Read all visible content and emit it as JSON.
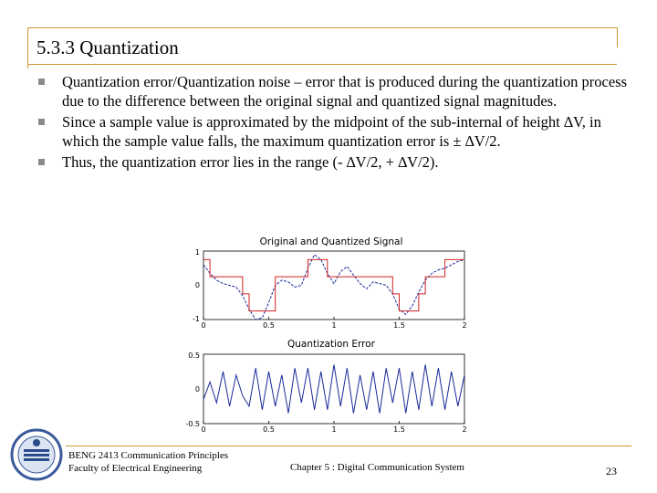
{
  "slide": {
    "title": "5.3.3 Quantization",
    "bullets": [
      "Quantization error/Quantization noise – error that is produced during the quantization process due to the difference between the original signal and quantized signal magnitudes.",
      "Since a sample value is approximated by the midpoint of the sub-internal of height ∆V, in which the sample value falls, the maximum quantization error is ± ∆V/2.",
      "Thus, the quantization error lies in the range (- ∆V/2, + ∆V/2)."
    ],
    "bullet_marker": "square-bullet-icon"
  },
  "figure": {
    "top_title": "Original and Quantized Signal",
    "top_yticks": [
      "1",
      "0",
      "-1"
    ],
    "bottom_title": "Quantization Error",
    "bottom_yticks": [
      "0.5",
      "0",
      "-0.5"
    ],
    "xticks": [
      "0",
      "0.5",
      "1",
      "1.5",
      "2"
    ],
    "original_color": "#1a2a9a",
    "quantized_color": "#d42020",
    "error_color": "#1a2a9a"
  },
  "chart_data": [
    {
      "type": "line",
      "title": "Original and Quantized Signal",
      "xlim": [
        0,
        2
      ],
      "ylim": [
        -1,
        1
      ],
      "xticks": [
        0,
        0.5,
        1,
        1.5,
        2
      ],
      "yticks": [
        -1,
        0,
        1
      ],
      "series": [
        {
          "x": [
            0,
            0.05,
            0.1,
            0.15,
            0.2,
            0.25,
            0.3,
            0.35,
            0.4,
            0.45,
            0.5,
            0.55,
            0.6,
            0.65,
            0.7,
            0.75,
            0.8,
            0.85,
            0.9,
            0.95,
            1,
            1.05,
            1.1,
            1.15,
            1.2,
            1.25,
            1.3,
            1.35,
            1.4,
            1.45,
            1.5,
            1.55,
            1.6,
            1.65,
            1.7,
            1.75,
            1.8,
            1.85,
            1.9,
            1.95,
            2
          ],
          "values": [
            0.6,
            0.35,
            0.15,
            0.05,
            0.0,
            -0.05,
            -0.3,
            -0.7,
            -1.0,
            -0.95,
            -0.5,
            0.0,
            0.15,
            0.1,
            -0.05,
            0.0,
            0.5,
            0.9,
            0.75,
            0.35,
            0.05,
            0.4,
            0.55,
            0.3,
            0.05,
            -0.1,
            0.1,
            0.05,
            0.0,
            -0.25,
            -0.7,
            -0.85,
            -0.6,
            -0.2,
            0.15,
            0.35,
            0.45,
            0.5,
            0.6,
            0.7,
            0.75
          ]
        },
        {
          "x": [
            0,
            0.05,
            0.1,
            0.15,
            0.2,
            0.25,
            0.3,
            0.35,
            0.4,
            0.45,
            0.5,
            0.55,
            0.6,
            0.65,
            0.7,
            0.75,
            0.8,
            0.85,
            0.9,
            0.95,
            1,
            1.05,
            1.1,
            1.15,
            1.2,
            1.25,
            1.3,
            1.35,
            1.4,
            1.45,
            1.5,
            1.55,
            1.6,
            1.65,
            1.7,
            1.75,
            1.8,
            1.85,
            1.9,
            1.95,
            2
          ],
          "values": [
            0.75,
            0.25,
            0.25,
            0.25,
            0.25,
            0.25,
            -0.25,
            -0.75,
            -0.75,
            -0.75,
            -0.75,
            0.25,
            0.25,
            0.25,
            0.25,
            0.25,
            0.75,
            0.75,
            0.75,
            0.25,
            0.25,
            0.25,
            0.25,
            0.25,
            0.25,
            0.25,
            0.25,
            0.25,
            0.25,
            -0.25,
            -0.75,
            -0.75,
            -0.75,
            -0.25,
            0.25,
            0.25,
            0.25,
            0.75,
            0.75,
            0.75,
            0.75
          ]
        }
      ]
    },
    {
      "type": "line",
      "title": "Quantization Error",
      "xlim": [
        0,
        2
      ],
      "ylim": [
        -0.5,
        0.5
      ],
      "xticks": [
        0,
        0.5,
        1,
        1.5,
        2
      ],
      "yticks": [
        -0.5,
        0,
        0.5
      ],
      "series": [
        {
          "x": [
            0,
            0.05,
            0.1,
            0.15,
            0.2,
            0.25,
            0.3,
            0.35,
            0.4,
            0.45,
            0.5,
            0.55,
            0.6,
            0.65,
            0.7,
            0.75,
            0.8,
            0.85,
            0.9,
            0.95,
            1,
            1.05,
            1.1,
            1.15,
            1.2,
            1.25,
            1.3,
            1.35,
            1.4,
            1.45,
            1.5,
            1.55,
            1.6,
            1.65,
            1.7,
            1.75,
            1.8,
            1.85,
            1.9,
            1.95,
            2
          ],
          "values": [
            -0.15,
            0.1,
            -0.2,
            0.25,
            -0.25,
            0.2,
            -0.1,
            -0.25,
            0.3,
            -0.3,
            0.25,
            -0.25,
            0.2,
            -0.35,
            0.3,
            -0.2,
            0.3,
            -0.3,
            0.25,
            -0.3,
            0.35,
            -0.25,
            0.3,
            -0.35,
            0.2,
            -0.3,
            0.25,
            -0.35,
            0.3,
            -0.2,
            0.3,
            -0.35,
            0.25,
            -0.3,
            0.35,
            -0.25,
            0.3,
            -0.3,
            0.25,
            -0.25,
            0.2
          ]
        }
      ]
    }
  ],
  "footer": {
    "course": "BENG 2413 Communication Principles",
    "faculty": "Faculty of Electrical Engineering",
    "chapter": "Chapter 5 : Digital Communication System",
    "page": "23",
    "logo_icon": "university-logo-icon"
  }
}
